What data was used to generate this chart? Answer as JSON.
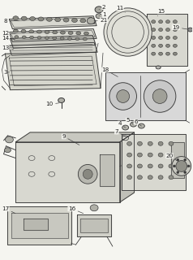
{
  "bg_color": "#f5f5f0",
  "line_color": "#3a3a3a",
  "label_color": "#222222",
  "fig_width": 2.38,
  "fig_height": 3.2,
  "dpi": 100,
  "lw": 0.65,
  "fs": 5.2
}
